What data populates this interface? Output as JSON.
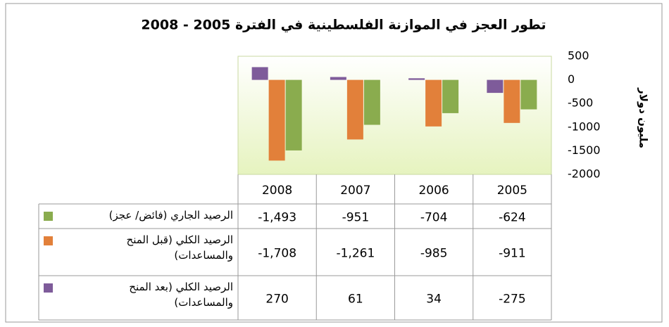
{
  "chart_data": {
    "type": "bar",
    "title": "تطور العجز في الموازنة الفلسطينية في الفترة 2005 - 2008",
    "y_label": "مليون دولار",
    "categories": [
      "2008",
      "2007",
      "2006",
      "2005"
    ],
    "series": [
      {
        "name": "الرصيد الجاري (فائض/ عجز)",
        "color": "#8aac4e",
        "values": [
          -1493,
          -951,
          -704,
          -624
        ],
        "value_labels": [
          "-1,493",
          "-951",
          "-704",
          "-624"
        ]
      },
      {
        "name": "الرصيد الكلي (قبل المنح والمساعدات)",
        "color": "#e2803a",
        "values": [
          -1708,
          -1261,
          -985,
          -911
        ],
        "value_labels": [
          "-1,708",
          "-1,261",
          "-985",
          "-911"
        ]
      },
      {
        "name": "الرصيد الكلي (بعد المنح والمساعدات)",
        "color": "#7e5b9a",
        "values": [
          270,
          61,
          34,
          -275
        ],
        "value_labels": [
          "270",
          "61",
          "34",
          "-275"
        ]
      }
    ],
    "ylim": [
      -2000,
      500
    ],
    "yticks": [
      500,
      0,
      -500,
      -1000,
      -1500,
      -2000
    ],
    "grid": false
  }
}
